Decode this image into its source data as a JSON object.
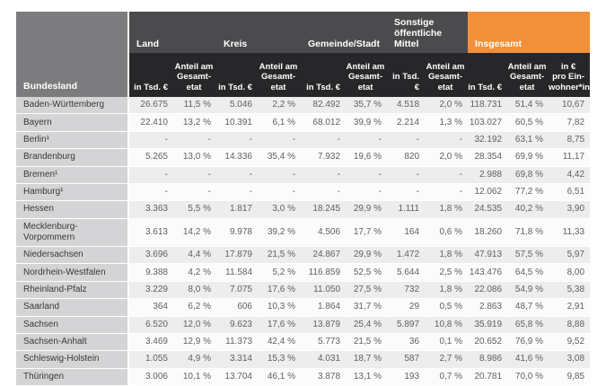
{
  "table": {
    "corner_header": "Bundesland",
    "groups": [
      {
        "label": "Land"
      },
      {
        "label": "Kreis"
      },
      {
        "label": "Gemeinde/Stadt"
      },
      {
        "label": "Sonstige\nöffentliche Mittel"
      },
      {
        "label": "Insgesamt"
      }
    ],
    "subheaders": [
      "in Tsd. €",
      "Anteil am\nGesamt-\netat",
      "in Tsd. €",
      "Anteil am\nGesamt-\netat",
      "in Tsd. €",
      "Anteil am\nGesamt-\netat",
      "in Tsd. €",
      "Anteil am\nGesamt-\netat",
      "in Tsd. €",
      "Anteil am\nGesamt-\netat",
      "in €\npro Ein-\nwohner*in²"
    ]
  },
  "colors": {
    "accent_orange": "#f0903a",
    "header_dark": "#27272a",
    "header_gray": "#4b4b4e",
    "corner_gray": "#7c7c7f",
    "name_cell_bg": "#d4d4d6",
    "row_alt_bg": "#ededee",
    "total_bg": "#fbe6d9"
  },
  "chart_data": {
    "type": "table",
    "columns": [
      "Bundesland",
      "Land in Tsd. €",
      "Land Anteil am Gesamtetat",
      "Kreis in Tsd. €",
      "Kreis Anteil am Gesamtetat",
      "Gemeinde/Stadt in Tsd. €",
      "Gemeinde/Stadt Anteil am Gesamtetat",
      "Sonstige öffentliche Mittel in Tsd. €",
      "Sonstige öffentliche Mittel Anteil am Gesamtetat",
      "Insgesamt in Tsd. €",
      "Insgesamt Anteil am Gesamtetat",
      "Insgesamt in € pro Einwohner*in²"
    ],
    "rows": [
      [
        "Baden-Württemberg",
        "26.675",
        "11,5 %",
        "5.046",
        "2,2 %",
        "82.492",
        "35,7 %",
        "4.518",
        "2,0 %",
        "118.731",
        "51,4 %",
        "10,67"
      ],
      [
        "Bayern",
        "22.410",
        "13,2 %",
        "10.391",
        "6,1 %",
        "68.012",
        "39,9 %",
        "2.214",
        "1,3 %",
        "103.027",
        "60,5 %",
        "7,82"
      ],
      [
        "Berlin¹",
        "-",
        "-",
        "-",
        "-",
        "-",
        "-",
        "-",
        "-",
        "32.192",
        "63,1 %",
        "8,75"
      ],
      [
        "Brandenburg",
        "5.265",
        "13,0 %",
        "14.336",
        "35,4 %",
        "7.932",
        "19,6 %",
        "820",
        "2,0 %",
        "28.354",
        "69,9 %",
        "11,17"
      ],
      [
        "Bremen¹",
        "-",
        "-",
        "-",
        "-",
        "-",
        "-",
        "-",
        "-",
        "2.988",
        "69,8 %",
        "4,42"
      ],
      [
        "Hamburg¹",
        "-",
        "-",
        "-",
        "-",
        "-",
        "-",
        "-",
        "-",
        "12.062",
        "77,2 %",
        "6,51"
      ],
      [
        "Hessen",
        "3.363",
        "5,5 %",
        "1.817",
        "3,0 %",
        "18.245",
        "29,9 %",
        "1.111",
        "1,8 %",
        "24.535",
        "40,2 %",
        "3,90"
      ],
      [
        "Mecklenburg-Vorpommern",
        "3.613",
        "14,2 %",
        "9.978",
        "39,2 %",
        "4.506",
        "17,7 %",
        "164",
        "0,6 %",
        "18.260",
        "71,8 %",
        "11,33"
      ],
      [
        "Niedersachsen",
        "3.696",
        "4,4 %",
        "17.879",
        "21,5 %",
        "24.867",
        "29,9 %",
        "1.472",
        "1,8 %",
        "47.913",
        "57,5 %",
        "5,97"
      ],
      [
        "Nordrhein-Westfalen",
        "9.388",
        "4,2 %",
        "11.584",
        "5,2 %",
        "116.859",
        "52,5 %",
        "5.644",
        "2,5 %",
        "143.476",
        "64,5 %",
        "8,00"
      ],
      [
        "Rheinland-Pfalz",
        "3.229",
        "8,0 %",
        "7.075",
        "17,6 %",
        "11.050",
        "27,5 %",
        "732",
        "1,8 %",
        "22.086",
        "54,9 %",
        "5,38"
      ],
      [
        "Saarland",
        "364",
        "6,2 %",
        "606",
        "10,3 %",
        "1.864",
        "31,7 %",
        "29",
        "0,5 %",
        "2.863",
        "48,7 %",
        "2,91"
      ],
      [
        "Sachsen",
        "6.520",
        "12,0 %",
        "9.623",
        "17,6 %",
        "13.879",
        "25,4 %",
        "5.897",
        "10,8 %",
        "35.919",
        "65,8 %",
        "8,88"
      ],
      [
        "Sachsen-Anhalt",
        "3.469",
        "12,9 %",
        "11.373",
        "42,4 %",
        "5.773",
        "21,5 %",
        "36",
        "0,1 %",
        "20.652",
        "76,9 %",
        "9,52"
      ],
      [
        "Schleswig-Holstein",
        "1.055",
        "4,9 %",
        "3.314",
        "15,3 %",
        "4.031",
        "18,7 %",
        "587",
        "2,7 %",
        "8.986",
        "41,6 %",
        "3,08"
      ],
      [
        "Thüringen",
        "3.006",
        "10,1 %",
        "13.704",
        "46,1 %",
        "3.878",
        "13,1 %",
        "193",
        "0,7 %",
        "20.781",
        "70,0 %",
        "9,85"
      ]
    ]
  }
}
